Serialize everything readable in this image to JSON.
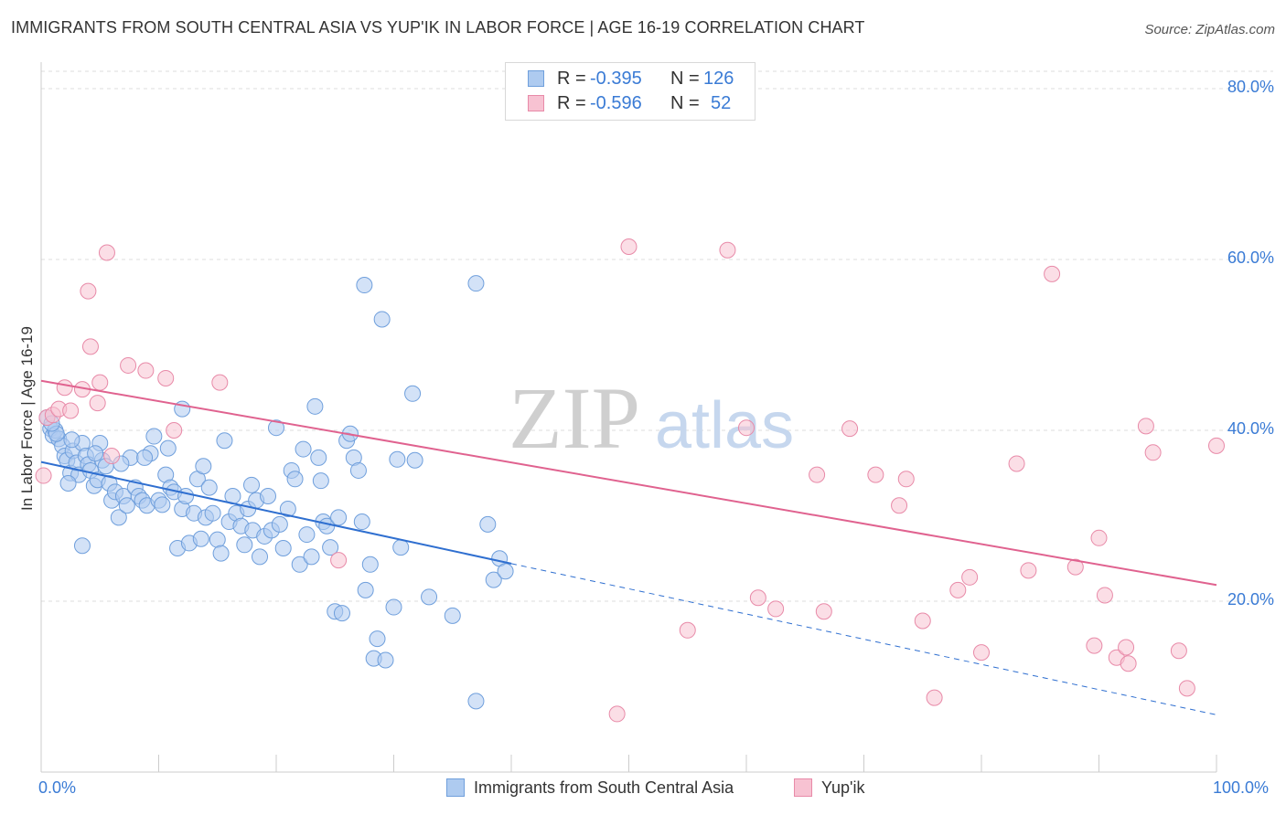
{
  "title": "IMMIGRANTS FROM SOUTH CENTRAL ASIA VS YUP'IK IN LABOR FORCE | AGE 16-19 CORRELATION CHART",
  "source": "Source: ZipAtlas.com",
  "watermark": {
    "zip": "ZIP",
    "atlas": "atlas"
  },
  "legend": {
    "rows": [
      {
        "r_label": "R =",
        "r_value": "-0.395",
        "n_label": "N =",
        "n_value": "126"
      },
      {
        "r_label": "R =",
        "r_value": "-0.596",
        "n_label": "N =",
        "n_value": "52"
      }
    ]
  },
  "colors": {
    "blue_fill": "#aecbf0",
    "blue_stroke": "#6f9fdc",
    "blue_line": "#2f6fd0",
    "pink_fill": "#f7c2d2",
    "pink_stroke": "#e88aa8",
    "pink_line": "#e0628f",
    "grid": "#dddddd",
    "axis_text": "#3a7bd5"
  },
  "chart_data": {
    "type": "scatter",
    "title": "IMMIGRANTS FROM SOUTH CENTRAL ASIA VS YUP'IK IN LABOR FORCE | AGE 16-19 CORRELATION CHART",
    "xlabel": "",
    "ylabel": "In Labor Force | Age 16-19",
    "xlim": [
      0,
      100
    ],
    "ylim": [
      0,
      82
    ],
    "x_tick_labels": [
      "0.0%",
      "100.0%"
    ],
    "y_ticks": [
      20,
      40,
      60,
      80
    ],
    "y_tick_labels": [
      "20.0%",
      "40.0%",
      "60.0%",
      "80.0%"
    ],
    "grid": "horizontal dashed",
    "legend_position": "top-center",
    "series": [
      {
        "name": "Immigrants from South Central Asia",
        "color": "#6f9fdc",
        "r": -0.395,
        "n": 126,
        "trend": {
          "x0": 0,
          "y0": 36.3,
          "x1": 40,
          "y1": 24.4,
          "dash_to_x": 100,
          "dash_to_y": 6.7
        },
        "points": [
          [
            0.5,
            41.5
          ],
          [
            0.8,
            40.2
          ],
          [
            1.0,
            39.4
          ],
          [
            1.2,
            40.0
          ],
          [
            1.5,
            39.0
          ],
          [
            1.8,
            38.2
          ],
          [
            2.0,
            37.0
          ],
          [
            2.2,
            36.5
          ],
          [
            2.5,
            35.0
          ],
          [
            2.7,
            37.6
          ],
          [
            3.0,
            36.2
          ],
          [
            3.2,
            34.8
          ],
          [
            3.5,
            38.5
          ],
          [
            3.8,
            37.0
          ],
          [
            4.0,
            36.0
          ],
          [
            4.2,
            35.3
          ],
          [
            4.5,
            33.5
          ],
          [
            4.8,
            34.2
          ],
          [
            5.0,
            38.5
          ],
          [
            5.2,
            36.5
          ],
          [
            5.5,
            35.8
          ],
          [
            5.8,
            33.8
          ],
          [
            6.0,
            31.8
          ],
          [
            6.3,
            32.8
          ],
          [
            6.6,
            29.8
          ],
          [
            7.0,
            32.3
          ],
          [
            7.3,
            31.2
          ],
          [
            7.6,
            36.8
          ],
          [
            8.0,
            33.3
          ],
          [
            8.3,
            32.3
          ],
          [
            8.6,
            31.8
          ],
          [
            9.0,
            31.2
          ],
          [
            9.3,
            37.3
          ],
          [
            9.6,
            39.3
          ],
          [
            10.0,
            31.8
          ],
          [
            10.3,
            31.3
          ],
          [
            10.6,
            34.8
          ],
          [
            11.0,
            33.3
          ],
          [
            11.3,
            32.8
          ],
          [
            11.6,
            26.2
          ],
          [
            12.0,
            30.8
          ],
          [
            12.3,
            32.3
          ],
          [
            12.6,
            26.8
          ],
          [
            13.0,
            30.3
          ],
          [
            13.3,
            34.3
          ],
          [
            13.6,
            27.3
          ],
          [
            14.0,
            29.8
          ],
          [
            14.3,
            33.3
          ],
          [
            14.6,
            30.3
          ],
          [
            15.0,
            27.2
          ],
          [
            15.3,
            25.6
          ],
          [
            15.6,
            38.8
          ],
          [
            16.0,
            29.3
          ],
          [
            16.3,
            32.3
          ],
          [
            16.6,
            30.3
          ],
          [
            17.0,
            28.8
          ],
          [
            17.3,
            26.6
          ],
          [
            17.6,
            30.8
          ],
          [
            18.0,
            28.3
          ],
          [
            18.3,
            31.8
          ],
          [
            18.6,
            25.2
          ],
          [
            19.0,
            27.6
          ],
          [
            19.3,
            32.3
          ],
          [
            19.6,
            28.3
          ],
          [
            20.0,
            40.3
          ],
          [
            20.3,
            29.0
          ],
          [
            20.6,
            26.2
          ],
          [
            21.0,
            30.8
          ],
          [
            21.3,
            35.3
          ],
          [
            21.6,
            34.3
          ],
          [
            22.0,
            24.3
          ],
          [
            22.3,
            37.8
          ],
          [
            22.6,
            27.8
          ],
          [
            23.0,
            25.2
          ],
          [
            23.3,
            42.8
          ],
          [
            23.6,
            36.8
          ],
          [
            24.0,
            29.3
          ],
          [
            24.3,
            28.8
          ],
          [
            24.6,
            26.3
          ],
          [
            25.0,
            18.8
          ],
          [
            25.3,
            29.8
          ],
          [
            25.6,
            18.6
          ],
          [
            26.0,
            38.8
          ],
          [
            26.3,
            39.6
          ],
          [
            26.6,
            36.8
          ],
          [
            27.0,
            35.3
          ],
          [
            27.3,
            29.3
          ],
          [
            27.6,
            21.3
          ],
          [
            28.0,
            24.3
          ],
          [
            28.3,
            13.3
          ],
          [
            28.6,
            15.6
          ],
          [
            29.0,
            53.0
          ],
          [
            29.3,
            13.1
          ],
          [
            30.0,
            19.3
          ],
          [
            30.3,
            36.6
          ],
          [
            30.6,
            26.3
          ],
          [
            27.5,
            57.0
          ],
          [
            37.0,
            57.2
          ],
          [
            31.6,
            44.3
          ],
          [
            31.8,
            36.5
          ],
          [
            33.0,
            20.5
          ],
          [
            35.0,
            18.3
          ],
          [
            37.0,
            8.3
          ],
          [
            38.0,
            29.0
          ],
          [
            38.5,
            22.5
          ],
          [
            39.0,
            25.0
          ],
          [
            39.5,
            23.5
          ],
          [
            12.0,
            42.5
          ],
          [
            3.5,
            26.5
          ],
          [
            2.3,
            33.8
          ],
          [
            1.3,
            39.6
          ],
          [
            0.9,
            40.8
          ],
          [
            4.6,
            37.3
          ],
          [
            6.8,
            36.1
          ],
          [
            8.8,
            36.8
          ],
          [
            10.8,
            37.9
          ],
          [
            13.8,
            35.8
          ],
          [
            2.6,
            38.9
          ],
          [
            17.9,
            33.6
          ],
          [
            23.8,
            34.1
          ]
        ]
      },
      {
        "name": "Yup'ik",
        "color": "#e88aa8",
        "r": -0.596,
        "n": 52,
        "trend": {
          "x0": 0,
          "y0": 45.8,
          "x1": 100,
          "y1": 21.9
        },
        "points": [
          [
            0.2,
            34.7
          ],
          [
            0.5,
            41.5
          ],
          [
            1.0,
            41.8
          ],
          [
            1.5,
            42.5
          ],
          [
            2.0,
            45.0
          ],
          [
            2.5,
            42.3
          ],
          [
            3.5,
            44.8
          ],
          [
            4.0,
            56.3
          ],
          [
            4.2,
            49.8
          ],
          [
            4.8,
            43.2
          ],
          [
            5.0,
            45.6
          ],
          [
            5.6,
            60.8
          ],
          [
            6.0,
            37.0
          ],
          [
            7.4,
            47.6
          ],
          [
            8.9,
            47.0
          ],
          [
            10.6,
            46.1
          ],
          [
            11.3,
            40.0
          ],
          [
            15.2,
            45.6
          ],
          [
            25.3,
            24.8
          ],
          [
            50.0,
            61.5
          ],
          [
            58.4,
            61.1
          ],
          [
            60.0,
            40.3
          ],
          [
            61.0,
            20.4
          ],
          [
            62.5,
            19.1
          ],
          [
            66.0,
            34.8
          ],
          [
            66.6,
            18.8
          ],
          [
            68.8,
            40.2
          ],
          [
            71.0,
            34.8
          ],
          [
            73.6,
            34.3
          ],
          [
            73.0,
            31.2
          ],
          [
            75.0,
            17.7
          ],
          [
            76.0,
            8.7
          ],
          [
            78.0,
            21.3
          ],
          [
            79.0,
            22.8
          ],
          [
            80.0,
            14.0
          ],
          [
            83.0,
            36.1
          ],
          [
            84.0,
            23.6
          ],
          [
            86.0,
            58.3
          ],
          [
            88.0,
            24.0
          ],
          [
            89.6,
            14.8
          ],
          [
            90.0,
            27.4
          ],
          [
            90.5,
            20.7
          ],
          [
            91.5,
            13.4
          ],
          [
            92.3,
            14.6
          ],
          [
            92.5,
            12.7
          ],
          [
            94.0,
            40.5
          ],
          [
            94.6,
            37.4
          ],
          [
            96.8,
            14.2
          ],
          [
            97.5,
            9.8
          ],
          [
            100.0,
            38.2
          ],
          [
            55.0,
            16.6
          ],
          [
            49.0,
            6.8
          ]
        ]
      }
    ]
  },
  "bottom_legend": {
    "series1": "Immigrants from South Central Asia",
    "series2": "Yup'ik"
  }
}
